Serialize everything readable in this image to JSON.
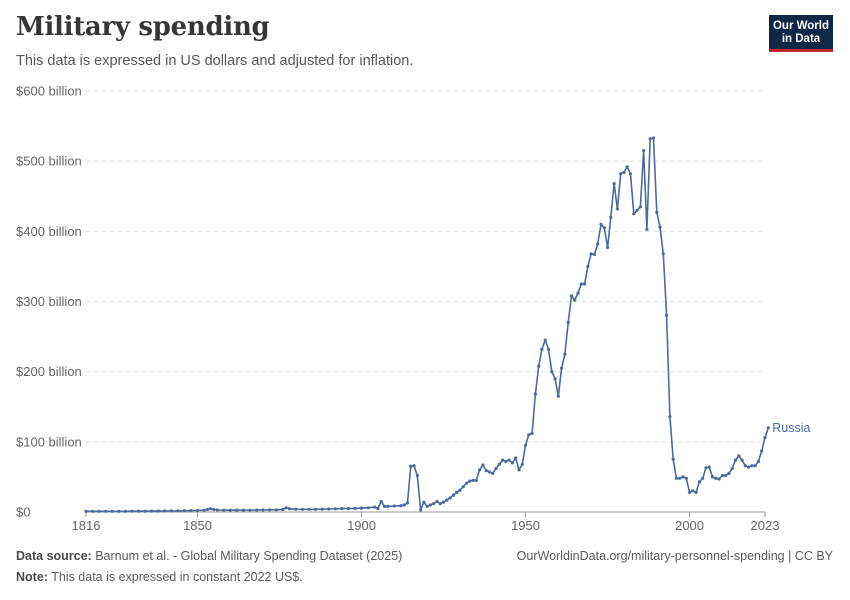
{
  "header": {
    "title": "Military spending",
    "subtitle": "This data is expressed in US dollars and adjusted for inflation."
  },
  "logo": {
    "line1": "Our World",
    "line2": "in Data"
  },
  "footer": {
    "source_label": "Data source:",
    "source_text": "Barnum et al. - Global Military Spending Dataset (2025)",
    "url_text": "OurWorldinData.org/military-personnel-spending | CC BY",
    "note_label": "Note:",
    "note_text": "This data is expressed in constant 2022 US$."
  },
  "colors": {
    "series": "#4c6a9c",
    "grid": "#dddddd",
    "axis": "#666666"
  },
  "chart_data": {
    "type": "line",
    "title": "Military spending",
    "subtitle": "This data is expressed in US dollars and adjusted for inflation.",
    "xlabel": "",
    "ylabel": "",
    "xlim": [
      1816,
      2023
    ],
    "ylim": [
      0,
      600
    ],
    "unit": "billion US$ (constant 2022)",
    "x_ticks": [
      {
        "value": 1816,
        "label": "1816"
      },
      {
        "value": 1850,
        "label": "1850"
      },
      {
        "value": 1900,
        "label": "1900"
      },
      {
        "value": 1950,
        "label": "1950"
      },
      {
        "value": 2000,
        "label": "2000"
      },
      {
        "value": 2023,
        "label": "2023"
      }
    ],
    "y_ticks": [
      {
        "value": 0,
        "label": "$0"
      },
      {
        "value": 100,
        "label": "$100 billion"
      },
      {
        "value": 200,
        "label": "$200 billion"
      },
      {
        "value": 300,
        "label": "$300 billion"
      },
      {
        "value": 400,
        "label": "$400 billion"
      },
      {
        "value": 500,
        "label": "$500 billion"
      },
      {
        "value": 600,
        "label": "$600 billion"
      }
    ],
    "grid": true,
    "legend": "inline-end-label",
    "series": [
      {
        "name": "Russia",
        "color": "#4c6a9c",
        "points": [
          [
            1816,
            1
          ],
          [
            1818,
            1
          ],
          [
            1820,
            1
          ],
          [
            1822,
            1
          ],
          [
            1824,
            1
          ],
          [
            1826,
            1
          ],
          [
            1828,
            1
          ],
          [
            1830,
            1.2
          ],
          [
            1832,
            1.2
          ],
          [
            1834,
            1.2
          ],
          [
            1836,
            1.3
          ],
          [
            1838,
            1.3
          ],
          [
            1840,
            1.4
          ],
          [
            1842,
            1.5
          ],
          [
            1844,
            1.6
          ],
          [
            1846,
            1.8
          ],
          [
            1848,
            2
          ],
          [
            1850,
            2.2
          ],
          [
            1852,
            2.5
          ],
          [
            1853,
            3.5
          ],
          [
            1854,
            4.5
          ],
          [
            1855,
            3.5
          ],
          [
            1856,
            2.8
          ],
          [
            1858,
            2.5
          ],
          [
            1860,
            2.5
          ],
          [
            1862,
            2.5
          ],
          [
            1864,
            2.6
          ],
          [
            1866,
            2.6
          ],
          [
            1868,
            2.7
          ],
          [
            1870,
            2.8
          ],
          [
            1872,
            3
          ],
          [
            1874,
            3.2
          ],
          [
            1876,
            3.5
          ],
          [
            1877,
            6
          ],
          [
            1878,
            4.5
          ],
          [
            1880,
            4
          ],
          [
            1882,
            3.8
          ],
          [
            1884,
            3.8
          ],
          [
            1886,
            3.9
          ],
          [
            1888,
            4
          ],
          [
            1890,
            4.3
          ],
          [
            1892,
            4.5
          ],
          [
            1894,
            4.8
          ],
          [
            1896,
            5
          ],
          [
            1898,
            5.2
          ],
          [
            1900,
            5.5
          ],
          [
            1902,
            6
          ],
          [
            1904,
            7
          ],
          [
            1905,
            5
          ],
          [
            1906,
            15
          ],
          [
            1907,
            8
          ],
          [
            1908,
            8
          ],
          [
            1910,
            8.5
          ],
          [
            1912,
            9
          ],
          [
            1913,
            10
          ],
          [
            1914,
            13
          ],
          [
            1915,
            65
          ],
          [
            1916,
            66
          ],
          [
            1917,
            52
          ],
          [
            1918,
            3
          ],
          [
            1919,
            14
          ],
          [
            1920,
            8
          ],
          [
            1921,
            10
          ],
          [
            1922,
            12
          ],
          [
            1923,
            15
          ],
          [
            1924,
            12
          ],
          [
            1925,
            14
          ],
          [
            1926,
            17
          ],
          [
            1927,
            20
          ],
          [
            1928,
            24
          ],
          [
            1929,
            28
          ],
          [
            1930,
            31
          ],
          [
            1931,
            36
          ],
          [
            1932,
            41
          ],
          [
            1933,
            44
          ],
          [
            1934,
            45
          ],
          [
            1935,
            45
          ],
          [
            1936,
            60
          ],
          [
            1937,
            67
          ],
          [
            1938,
            59
          ],
          [
            1939,
            57
          ],
          [
            1940,
            55
          ],
          [
            1941,
            62
          ],
          [
            1942,
            68
          ],
          [
            1943,
            74
          ],
          [
            1944,
            72
          ],
          [
            1945,
            74
          ],
          [
            1946,
            70
          ],
          [
            1947,
            77
          ],
          [
            1948,
            60
          ],
          [
            1949,
            68
          ],
          [
            1950,
            95
          ],
          [
            1951,
            110
          ],
          [
            1952,
            112
          ],
          [
            1953,
            168
          ],
          [
            1954,
            208
          ],
          [
            1955,
            232
          ],
          [
            1956,
            245
          ],
          [
            1957,
            232
          ],
          [
            1958,
            200
          ],
          [
            1959,
            190
          ],
          [
            1960,
            165
          ],
          [
            1961,
            205
          ],
          [
            1962,
            225
          ],
          [
            1963,
            270
          ],
          [
            1964,
            308
          ],
          [
            1965,
            302
          ],
          [
            1966,
            312
          ],
          [
            1967,
            325
          ],
          [
            1968,
            325
          ],
          [
            1969,
            350
          ],
          [
            1970,
            368
          ],
          [
            1971,
            367
          ],
          [
            1972,
            382
          ],
          [
            1973,
            410
          ],
          [
            1974,
            405
          ],
          [
            1975,
            377
          ],
          [
            1976,
            420
          ],
          [
            1977,
            468
          ],
          [
            1978,
            432
          ],
          [
            1979,
            482
          ],
          [
            1980,
            484
          ],
          [
            1981,
            492
          ],
          [
            1982,
            482
          ],
          [
            1983,
            425
          ],
          [
            1984,
            430
          ],
          [
            1985,
            435
          ],
          [
            1986,
            515
          ],
          [
            1987,
            403
          ],
          [
            1988,
            532
          ],
          [
            1989,
            533
          ],
          [
            1990,
            427
          ],
          [
            1991,
            406
          ],
          [
            1992,
            368
          ],
          [
            1993,
            280
          ],
          [
            1994,
            136
          ],
          [
            1995,
            75
          ],
          [
            1996,
            48
          ],
          [
            1997,
            48
          ],
          [
            1998,
            50
          ],
          [
            1999,
            48
          ],
          [
            2000,
            28
          ],
          [
            2001,
            30
          ],
          [
            2002,
            28
          ],
          [
            2003,
            43
          ],
          [
            2004,
            48
          ],
          [
            2005,
            63
          ],
          [
            2006,
            64
          ],
          [
            2007,
            50
          ],
          [
            2008,
            48
          ],
          [
            2009,
            47
          ],
          [
            2010,
            52
          ],
          [
            2011,
            52
          ],
          [
            2012,
            55
          ],
          [
            2013,
            62
          ],
          [
            2014,
            74
          ],
          [
            2015,
            80
          ],
          [
            2016,
            74
          ],
          [
            2017,
            66
          ],
          [
            2018,
            64
          ],
          [
            2019,
            66
          ],
          [
            2020,
            66
          ],
          [
            2021,
            72
          ],
          [
            2022,
            87
          ],
          [
            2023,
            106
          ],
          [
            2024,
            120
          ]
        ]
      }
    ]
  }
}
